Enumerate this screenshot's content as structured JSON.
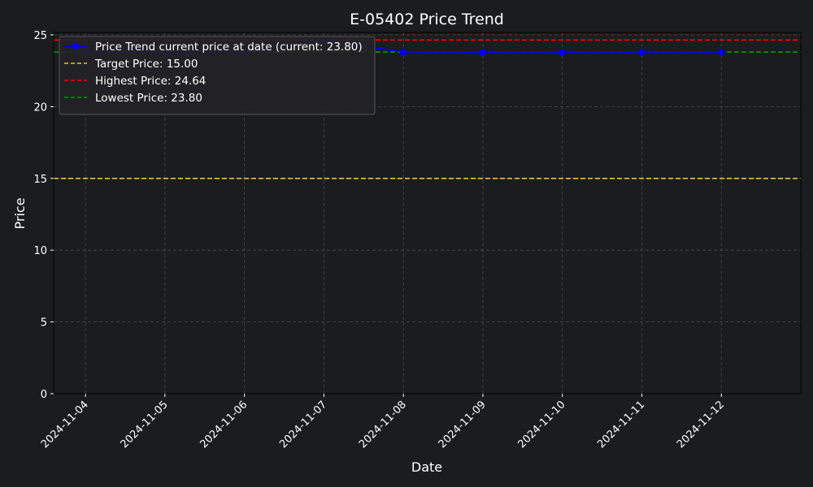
{
  "chart_data": {
    "type": "line",
    "title": "E-05402 Price Trend",
    "xlabel": "Date",
    "ylabel": "Price",
    "x": [
      "2024-11-04",
      "2024-11-05",
      "2024-11-06",
      "2024-11-07",
      "2024-11-08",
      "2024-11-09",
      "2024-11-10",
      "2024-11-11",
      "2024-11-12"
    ],
    "xlim": [
      "2024-11-03",
      "2024-11-12"
    ],
    "ylim": [
      0,
      25
    ],
    "yticks": [
      0,
      5,
      10,
      15,
      20,
      25
    ],
    "grid": true,
    "legend_position": "top-left",
    "series": [
      {
        "name": "Price Trend current price at date (current: 23.80)",
        "x": [
          "2024-11-04",
          "2024-11-05",
          "2024-11-06",
          "2024-11-07",
          "2024-11-08",
          "2024-11-09",
          "2024-11-10",
          "2024-11-11",
          "2024-11-12"
        ],
        "values": [
          23.8,
          23.8,
          23.8,
          24.64,
          23.8,
          23.8,
          23.8,
          23.8,
          23.8
        ],
        "color": "#0000ff",
        "style": "line-with-markers"
      }
    ],
    "reference_lines": [
      {
        "name": "Target Price: 15.00",
        "value": 15.0,
        "color": "#e8c12e",
        "style": "dashed"
      },
      {
        "name": "Highest Price: 24.64",
        "value": 24.64,
        "color": "#ff0000",
        "style": "dashed"
      },
      {
        "name": "Lowest Price: 23.80",
        "value": 23.8,
        "color": "#00a000",
        "style": "dashed"
      }
    ]
  },
  "colors": {
    "background": "#1b1c1e",
    "text": "#ffffff",
    "grid": "#4a4a4a",
    "axis": "#000000",
    "legend_bg": "#232427",
    "legend_border": "#555555"
  }
}
